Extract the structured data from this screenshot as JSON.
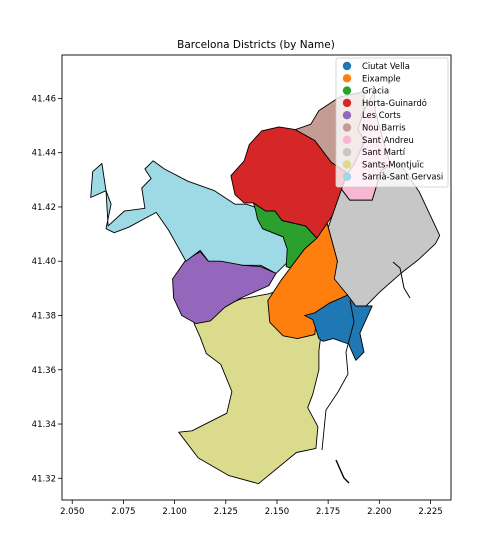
{
  "title": "Barcelona Districts (by Name)",
  "x_axis": {
    "range": [
      2.045,
      2.235
    ],
    "ticks": [
      2.05,
      2.075,
      2.1,
      2.125,
      2.15,
      2.175,
      2.2,
      2.225
    ],
    "tick_labels": [
      "2.050",
      "2.075",
      "2.100",
      "2.125",
      "2.150",
      "2.175",
      "2.200",
      "2.225"
    ]
  },
  "y_axis": {
    "range": [
      41.312,
      41.476
    ],
    "ticks": [
      41.32,
      41.34,
      41.36,
      41.38,
      41.4,
      41.42,
      41.44,
      41.46
    ],
    "tick_labels": [
      "41.32",
      "41.34",
      "41.36",
      "41.38",
      "41.40",
      "41.42",
      "41.44",
      "41.46"
    ]
  },
  "legend": {
    "placement": "top-right",
    "items": [
      {
        "label": "Ciutat Vella",
        "color": "#1f77b4"
      },
      {
        "label": "Eixample",
        "color": "#ff7f0e"
      },
      {
        "label": "Gràcia",
        "color": "#2ca02c"
      },
      {
        "label": "Horta-Guinardó",
        "color": "#d62728"
      },
      {
        "label": "Les Corts",
        "color": "#9467bd"
      },
      {
        "label": "Nou Barris",
        "color": "#c49c94"
      },
      {
        "label": "Sant Andreu",
        "color": "#f7b6d2"
      },
      {
        "label": "Sant Martí",
        "color": "#c7c7c7"
      },
      {
        "label": "Sants-Montjuïc",
        "color": "#dbdb8d"
      },
      {
        "label": "Sarrià-Sant Gervasi",
        "color": "#9edae5"
      }
    ]
  },
  "districts": [
    {
      "name": "Sants-Montjuïc",
      "color": "#dbdb8d",
      "points": [
        [
          2.1225,
          41.383
        ],
        [
          2.132,
          41.386
        ],
        [
          2.146,
          41.388
        ],
        [
          2.15,
          41.389
        ],
        [
          2.1535,
          41.386
        ],
        [
          2.1565,
          41.381
        ],
        [
          2.164,
          41.3785
        ],
        [
          2.173,
          41.378
        ],
        [
          2.1715,
          41.373
        ],
        [
          2.1705,
          41.367
        ],
        [
          2.1705,
          41.36
        ],
        [
          2.1675,
          41.351
        ],
        [
          2.165,
          41.346
        ],
        [
          2.17,
          41.339
        ],
        [
          2.169,
          41.331
        ],
        [
          2.1595,
          41.3295
        ],
        [
          2.141,
          41.318
        ],
        [
          2.1265,
          41.321
        ],
        [
          2.1115,
          41.3275
        ],
        [
          2.102,
          41.337
        ],
        [
          2.1085,
          41.3375
        ],
        [
          2.1255,
          41.344
        ],
        [
          2.128,
          41.352
        ],
        [
          2.1225,
          41.362
        ],
        [
          2.1155,
          41.366
        ],
        [
          2.1125,
          41.372
        ],
        [
          2.1095,
          41.377
        ],
        [
          2.115,
          41.382
        ]
      ]
    },
    {
      "name": "Les Corts",
      "color": "#9467bd",
      "points": [
        [
          2.1245,
          41.383
        ],
        [
          2.1325,
          41.3865
        ],
        [
          2.146,
          41.391
        ],
        [
          2.1495,
          41.3955
        ],
        [
          2.142,
          41.398
        ],
        [
          2.1335,
          41.3985
        ],
        [
          2.1225,
          41.4005
        ],
        [
          2.1165,
          41.4
        ],
        [
          2.1125,
          41.4035
        ],
        [
          2.1055,
          41.4005
        ],
        [
          2.099,
          41.3935
        ],
        [
          2.0995,
          41.3865
        ],
        [
          2.1035,
          41.38
        ],
        [
          2.1105,
          41.377
        ],
        [
          2.1175,
          41.378
        ]
      ]
    },
    {
      "name": "Sarrià-Sant Gervasi",
      "color": "#9edae5",
      "points": [
        [
          2.059,
          41.4235
        ],
        [
          2.06,
          41.433
        ],
        [
          2.0645,
          41.436
        ],
        [
          2.0665,
          41.426
        ],
        [
          2.0675,
          41.413
        ],
        [
          2.0755,
          41.4185
        ],
        [
          2.0855,
          41.4195
        ],
        [
          2.084,
          41.427
        ],
        [
          2.0885,
          41.4305
        ],
        [
          2.0855,
          41.434
        ],
        [
          2.0895,
          41.437
        ],
        [
          2.095,
          41.434
        ],
        [
          2.1065,
          41.4295
        ],
        [
          2.1195,
          41.426
        ],
        [
          2.1295,
          41.421
        ],
        [
          2.135,
          41.421
        ],
        [
          2.141,
          41.4195
        ],
        [
          2.143,
          41.412
        ],
        [
          2.153,
          41.409
        ],
        [
          2.1575,
          41.4045
        ],
        [
          2.155,
          41.3995
        ],
        [
          2.1495,
          41.3955
        ],
        [
          2.142,
          41.3985
        ],
        [
          2.1335,
          41.3985
        ],
        [
          2.1225,
          41.4
        ],
        [
          2.1165,
          41.4
        ],
        [
          2.1125,
          41.404
        ],
        [
          2.1055,
          41.4
        ],
        [
          2.097,
          41.4115
        ],
        [
          2.091,
          41.418
        ],
        [
          2.0775,
          41.4125
        ],
        [
          2.0705,
          41.4105
        ],
        [
          2.0665,
          41.412
        ],
        [
          2.069,
          41.421
        ],
        [
          2.0665,
          41.426
        ]
      ]
    },
    {
      "name": "Gràcia",
      "color": "#2ca02c",
      "points": [
        [
          2.1385,
          41.4215
        ],
        [
          2.1445,
          41.4185
        ],
        [
          2.149,
          41.4185
        ],
        [
          2.1525,
          41.415
        ],
        [
          2.164,
          41.413
        ],
        [
          2.1695,
          41.4085
        ],
        [
          2.1635,
          41.4045
        ],
        [
          2.1565,
          41.3975
        ],
        [
          2.1545,
          41.398
        ],
        [
          2.155,
          41.4045
        ],
        [
          2.153,
          41.409
        ],
        [
          2.143,
          41.412
        ],
        [
          2.1405,
          41.4155
        ],
        [
          2.1395,
          41.419
        ]
      ]
    },
    {
      "name": "Horta-Guinardó",
      "color": "#d62728",
      "points": [
        [
          2.1295,
          41.4245
        ],
        [
          2.1275,
          41.4315
        ],
        [
          2.134,
          41.437
        ],
        [
          2.1365,
          41.443
        ],
        [
          2.1425,
          41.448
        ],
        [
          2.151,
          41.4495
        ],
        [
          2.159,
          41.4485
        ],
        [
          2.1685,
          41.4445
        ],
        [
          2.1765,
          41.4365
        ],
        [
          2.184,
          41.4325
        ],
        [
          2.1815,
          41.4265
        ],
        [
          2.1795,
          41.4195
        ],
        [
          2.1745,
          41.414
        ],
        [
          2.1695,
          41.4085
        ],
        [
          2.164,
          41.413
        ],
        [
          2.1525,
          41.415
        ],
        [
          2.149,
          41.4185
        ],
        [
          2.1445,
          41.4185
        ],
        [
          2.1385,
          41.4215
        ],
        [
          2.134,
          41.4215
        ]
      ]
    },
    {
      "name": "Nou Barris",
      "color": "#c49c94",
      "points": [
        [
          2.159,
          41.4485
        ],
        [
          2.1665,
          41.4505
        ],
        [
          2.1705,
          41.4555
        ],
        [
          2.1805,
          41.4605
        ],
        [
          2.1925,
          41.4625
        ],
        [
          2.1925,
          41.4555
        ],
        [
          2.1895,
          41.4485
        ],
        [
          2.193,
          41.4445
        ],
        [
          2.1875,
          41.4355
        ],
        [
          2.1845,
          41.4325
        ],
        [
          2.1765,
          41.4365
        ],
        [
          2.1685,
          41.4445
        ]
      ]
    },
    {
      "name": "Sant Andreu",
      "color": "#f7b6d2",
      "points": [
        [
          2.1845,
          41.4325
        ],
        [
          2.1875,
          41.4355
        ],
        [
          2.193,
          41.4445
        ],
        [
          2.1895,
          41.4485
        ],
        [
          2.1925,
          41.4555
        ],
        [
          2.1975,
          41.4625
        ],
        [
          2.198,
          41.4555
        ],
        [
          2.2015,
          41.4455
        ],
        [
          2.2055,
          41.4355
        ],
        [
          2.201,
          41.4335
        ],
        [
          2.1965,
          41.4225
        ],
        [
          2.1855,
          41.4225
        ],
        [
          2.1815,
          41.4265
        ]
      ]
    },
    {
      "name": "Sant Martí",
      "color": "#c7c7c7",
      "points": [
        [
          2.1815,
          41.4265
        ],
        [
          2.1855,
          41.4225
        ],
        [
          2.1965,
          41.4225
        ],
        [
          2.201,
          41.4335
        ],
        [
          2.2055,
          41.4355
        ],
        [
          2.2105,
          41.4355
        ],
        [
          2.2195,
          41.4255
        ],
        [
          2.2295,
          41.4095
        ],
        [
          2.2275,
          41.4065
        ],
        [
          2.219,
          41.4005
        ],
        [
          2.2105,
          41.3955
        ],
        [
          2.2,
          41.3885
        ],
        [
          2.1935,
          41.3835
        ],
        [
          2.1865,
          41.3825
        ],
        [
          2.1845,
          41.3875
        ],
        [
          2.177,
          41.3925
        ],
        [
          2.1795,
          41.4
        ],
        [
          2.175,
          41.4125
        ]
      ]
    },
    {
      "name": "Eixample",
      "color": "#ff7f0e",
      "points": [
        [
          2.1565,
          41.3975
        ],
        [
          2.1635,
          41.4045
        ],
        [
          2.1695,
          41.4085
        ],
        [
          2.1745,
          41.414
        ],
        [
          2.1795,
          41.4
        ],
        [
          2.178,
          41.3935
        ],
        [
          2.1845,
          41.3875
        ],
        [
          2.1755,
          41.3845
        ],
        [
          2.1695,
          41.381
        ],
        [
          2.1685,
          41.373
        ],
        [
          2.16,
          41.3715
        ],
        [
          2.153,
          41.3725
        ],
        [
          2.1465,
          41.3775
        ],
        [
          2.1455,
          41.3855
        ],
        [
          2.152,
          41.393
        ]
      ]
    },
    {
      "name": "Ciutat Vella",
      "color": "#1f77b4",
      "points": [
        [
          2.1635,
          41.38
        ],
        [
          2.1685,
          41.381
        ],
        [
          2.1755,
          41.3845
        ],
        [
          2.1845,
          41.3875
        ],
        [
          2.1885,
          41.3835
        ],
        [
          2.1965,
          41.3835
        ],
        [
          2.1905,
          41.3735
        ],
        [
          2.1925,
          41.3665
        ],
        [
          2.1885,
          41.3635
        ],
        [
          2.185,
          41.3695
        ],
        [
          2.1775,
          41.3715
        ],
        [
          2.1725,
          41.3705
        ],
        [
          2.1705,
          41.3715
        ],
        [
          2.1675,
          41.3785
        ]
      ]
    }
  ]
}
